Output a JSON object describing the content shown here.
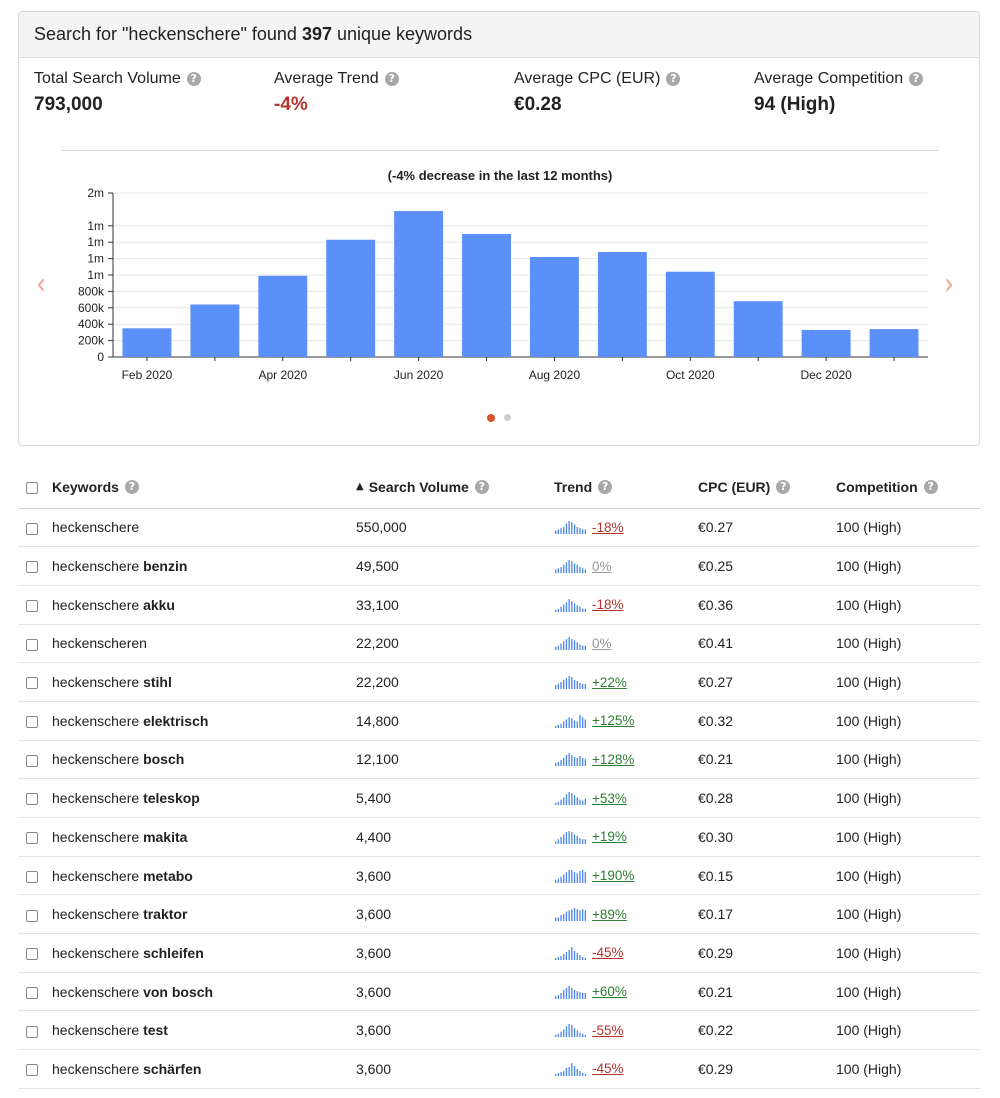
{
  "summary": {
    "prefix": "Search for \"heckenschere\" found ",
    "count": "397",
    "suffix": " unique keywords"
  },
  "metrics": [
    {
      "label": "Total Search Volume",
      "value": "793,000",
      "tone": "normal"
    },
    {
      "label": "Average Trend",
      "value": "-4%",
      "tone": "neg"
    },
    {
      "label": "Average CPC (EUR)",
      "value": "€0.28",
      "tone": "normal"
    },
    {
      "label": "Average Competition",
      "value": "94 (High)",
      "tone": "normal"
    }
  ],
  "help_glyph": "?",
  "carousel": {
    "prev_glyph": "‹",
    "next_glyph": "›",
    "active_color": "#d9532c",
    "inactive_color": "#cccccc"
  },
  "chart_data": {
    "type": "bar",
    "title": "(-4% decrease in the last 12 months)",
    "xlabel": "",
    "ylabel": "",
    "color": "#5b8ff9",
    "categories": [
      "Feb 2020",
      "Mar 2020",
      "Apr 2020",
      "May 2020",
      "Jun 2020",
      "Jul 2020",
      "Aug 2020",
      "Sep 2020",
      "Oct 2020",
      "Nov 2020",
      "Dec 2020",
      "Jan 2021"
    ],
    "tick_labels": [
      "Feb 2020",
      "",
      "Apr 2020",
      "",
      "Jun 2020",
      "",
      "Aug 2020",
      "",
      "Oct 2020",
      "",
      "Dec 2020",
      ""
    ],
    "values": [
      350000,
      640000,
      990000,
      1430000,
      1780000,
      1500000,
      1220000,
      1280000,
      1040000,
      680000,
      330000,
      340000
    ],
    "ylim": [
      0,
      2000000
    ],
    "yticks": [
      0,
      200000,
      400000,
      600000,
      800000,
      1000000,
      1200000,
      1400000,
      1600000,
      2000000
    ],
    "ytick_labels": [
      "0",
      "200k",
      "400k",
      "600k",
      "800k",
      "1m",
      "1m",
      "1m",
      "1m",
      "2m"
    ],
    "grid": true,
    "legend": "none"
  },
  "table": {
    "headers": {
      "keywords": "Keywords",
      "volume": "Search Volume",
      "trend": "Trend",
      "cpc": "CPC (EUR)",
      "competition": "Competition"
    },
    "sort_glyph": "▲",
    "spark_color": "#4a86e8",
    "rows": [
      {
        "base": "heckenschere",
        "suffix": "",
        "volume": "550,000",
        "trend": "-18%",
        "tone": "neg",
        "cpc": "€0.27",
        "competition": "100 (High)",
        "spark": [
          3,
          4,
          5,
          6,
          9,
          11,
          10,
          8,
          6,
          5,
          4,
          4
        ]
      },
      {
        "base": "heckenschere ",
        "suffix": "benzin",
        "volume": "49,500",
        "trend": "0%",
        "tone": "zero",
        "cpc": "€0.25",
        "competition": "100 (High)",
        "spark": [
          3,
          4,
          5,
          7,
          9,
          11,
          10,
          8,
          7,
          5,
          4,
          3
        ]
      },
      {
        "base": "heckenschere ",
        "suffix": "akku",
        "volume": "33,100",
        "trend": "-18%",
        "tone": "neg",
        "cpc": "€0.36",
        "competition": "100 (High)",
        "spark": [
          2,
          3,
          5,
          7,
          9,
          12,
          10,
          8,
          6,
          5,
          3,
          3
        ]
      },
      {
        "base": "heckenscheren",
        "suffix": "",
        "volume": "22,200",
        "trend": "0%",
        "tone": "zero",
        "cpc": "€0.41",
        "competition": "100 (High)",
        "spark": [
          3,
          4,
          6,
          8,
          10,
          12,
          10,
          9,
          7,
          5,
          4,
          4
        ]
      },
      {
        "base": "heckenschere ",
        "suffix": "stihl",
        "volume": "22,200",
        "trend": "+22%",
        "tone": "pos",
        "cpc": "€0.27",
        "competition": "100 (High)",
        "spark": [
          4,
          5,
          7,
          9,
          11,
          13,
          12,
          9,
          8,
          6,
          5,
          5
        ]
      },
      {
        "base": "heckenschere ",
        "suffix": "elektrisch",
        "volume": "14,800",
        "trend": "+125%",
        "tone": "pos",
        "cpc": "€0.32",
        "competition": "100 (High)",
        "spark": [
          2,
          3,
          4,
          6,
          8,
          10,
          9,
          7,
          6,
          12,
          10,
          8
        ]
      },
      {
        "base": "heckenschere ",
        "suffix": "bosch",
        "volume": "12,100",
        "trend": "+128%",
        "tone": "pos",
        "cpc": "€0.21",
        "competition": "100 (High)",
        "spark": [
          3,
          4,
          6,
          8,
          11,
          13,
          11,
          9,
          8,
          10,
          8,
          7
        ]
      },
      {
        "base": "heckenschere ",
        "suffix": "teleskop",
        "volume": "5,400",
        "trend": "+53%",
        "tone": "pos",
        "cpc": "€0.28",
        "competition": "100 (High)",
        "spark": [
          2,
          3,
          5,
          7,
          10,
          12,
          11,
          9,
          7,
          5,
          4,
          6
        ]
      },
      {
        "base": "heckenschere ",
        "suffix": "makita",
        "volume": "4,400",
        "trend": "+19%",
        "tone": "pos",
        "cpc": "€0.30",
        "competition": "100 (High)",
        "spark": [
          2,
          4,
          6,
          8,
          10,
          11,
          10,
          8,
          7,
          5,
          4,
          4
        ]
      },
      {
        "base": "heckenschere ",
        "suffix": "metabo",
        "volume": "3,600",
        "trend": "+190%",
        "tone": "pos",
        "cpc": "€0.15",
        "competition": "100 (High)",
        "spark": [
          3,
          4,
          6,
          8,
          10,
          12,
          12,
          10,
          9,
          11,
          12,
          10
        ]
      },
      {
        "base": "heckenschere ",
        "suffix": "traktor",
        "volume": "3,600",
        "trend": "+89%",
        "tone": "pos",
        "cpc": "€0.17",
        "competition": "100 (High)",
        "spark": [
          3,
          3,
          5,
          6,
          8,
          9,
          10,
          11,
          10,
          9,
          10,
          9
        ]
      },
      {
        "base": "heckenschere ",
        "suffix": "schleifen",
        "volume": "3,600",
        "trend": "-45%",
        "tone": "neg",
        "cpc": "€0.29",
        "competition": "100 (High)",
        "spark": [
          2,
          3,
          4,
          6,
          8,
          10,
          13,
          9,
          7,
          5,
          3,
          2
        ]
      },
      {
        "base": "heckenschere ",
        "suffix": "von bosch",
        "volume": "3,600",
        "trend": "+60%",
        "tone": "pos",
        "cpc": "€0.21",
        "competition": "100 (High)",
        "spark": [
          3,
          4,
          6,
          9,
          11,
          13,
          11,
          9,
          8,
          7,
          6,
          6
        ]
      },
      {
        "base": "heckenschere ",
        "suffix": "test",
        "volume": "3,600",
        "trend": "-55%",
        "tone": "neg",
        "cpc": "€0.22",
        "competition": "100 (High)",
        "spark": [
          2,
          3,
          5,
          7,
          10,
          12,
          11,
          8,
          6,
          4,
          3,
          2
        ]
      },
      {
        "base": "heckenschere ",
        "suffix": "schärfen",
        "volume": "3,600",
        "trend": "-45%",
        "tone": "neg",
        "cpc": "€0.29",
        "competition": "100 (High)",
        "spark": [
          2,
          3,
          4,
          5,
          8,
          9,
          13,
          10,
          7,
          5,
          3,
          2
        ]
      }
    ]
  }
}
